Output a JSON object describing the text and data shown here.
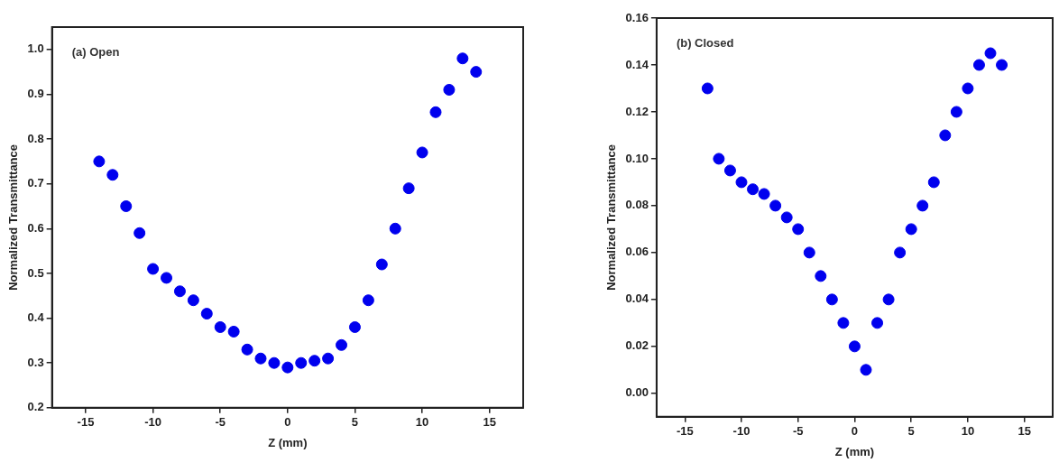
{
  "chart_data": [
    {
      "type": "scatter",
      "xlabel": "Z (mm)",
      "ylabel": "Normalized Transmittance",
      "annotations": [
        "(a) Open"
      ],
      "marker": "circle",
      "xlim": [
        -17.5,
        17.5
      ],
      "ylim": [
        0.2,
        1.05
      ],
      "xticks": [
        -15,
        -10,
        -5,
        0,
        5,
        10,
        15
      ],
      "yticks": [
        {
          "value": 0.2,
          "label": "0.2"
        },
        {
          "value": 0.3,
          "label": "0.3"
        },
        {
          "value": 0.4,
          "label": "0.4"
        },
        {
          "value": 0.5,
          "label": "0.5"
        },
        {
          "value": 0.6,
          "label": "0.6"
        },
        {
          "value": 0.7,
          "label": "0.7"
        },
        {
          "value": 0.8,
          "label": "0.8"
        },
        {
          "value": 0.9,
          "label": "0.9"
        },
        {
          "value": 1,
          "label": "1.0"
        }
      ],
      "series": [
        {
          "color": "#0000ee",
          "x": [
            -14,
            -13,
            -12,
            -11,
            -10,
            -9,
            -8,
            -7,
            -6,
            -5,
            -4,
            -3,
            -2,
            -1,
            0,
            1,
            2,
            3,
            4,
            5,
            6,
            7,
            8,
            9,
            10,
            11,
            12,
            13,
            14
          ],
          "values": [
            0.75,
            0.72,
            0.65,
            0.59,
            0.51,
            0.49,
            0.46,
            0.44,
            0.41,
            0.38,
            0.37,
            0.33,
            0.31,
            0.3,
            0.29,
            0.3,
            0.305,
            0.31,
            0.34,
            0.38,
            0.44,
            0.52,
            0.6,
            0.69,
            0.77,
            0.86,
            0.91,
            0.98,
            0.95
          ]
        }
      ]
    },
    {
      "type": "scatter",
      "xlabel": "Z (mm)",
      "ylabel": "Normalized Transmittance",
      "annotations": [
        "(b) Closed"
      ],
      "marker": "circle",
      "xlim": [
        -17.5,
        17.5
      ],
      "ylim": [
        -0.01,
        0.16
      ],
      "xticks": [
        -15,
        -10,
        -5,
        0,
        5,
        10,
        15
      ],
      "yticks": [
        {
          "value": 0,
          "label": "0.00"
        },
        {
          "value": 0.02,
          "label": "0.02"
        },
        {
          "value": 0.04,
          "label": "0.04"
        },
        {
          "value": 0.06,
          "label": "0.06"
        },
        {
          "value": 0.08,
          "label": "0.08"
        },
        {
          "value": 0.1,
          "label": "0.10"
        },
        {
          "value": 0.12,
          "label": "0.12"
        },
        {
          "value": 0.14,
          "label": "0.14"
        },
        {
          "value": 0.16,
          "label": "0.16"
        }
      ],
      "series": [
        {
          "color": "#0000ee",
          "x": [
            -13,
            -12,
            -11,
            -10,
            -9,
            -8,
            -7,
            -6,
            -5,
            -4,
            -3,
            -2,
            -1,
            0,
            1,
            2,
            3,
            4,
            5,
            6,
            7,
            8,
            9,
            10,
            11,
            12,
            13
          ],
          "values": [
            0.13,
            0.1,
            0.095,
            0.09,
            0.087,
            0.085,
            0.08,
            0.075,
            0.07,
            0.06,
            0.05,
            0.04,
            0.03,
            0.02,
            0.01,
            0.03,
            0.04,
            0.06,
            0.07,
            0.08,
            0.09,
            0.11,
            0.12,
            0.13,
            0.14,
            0.145,
            0.14
          ]
        }
      ]
    }
  ]
}
